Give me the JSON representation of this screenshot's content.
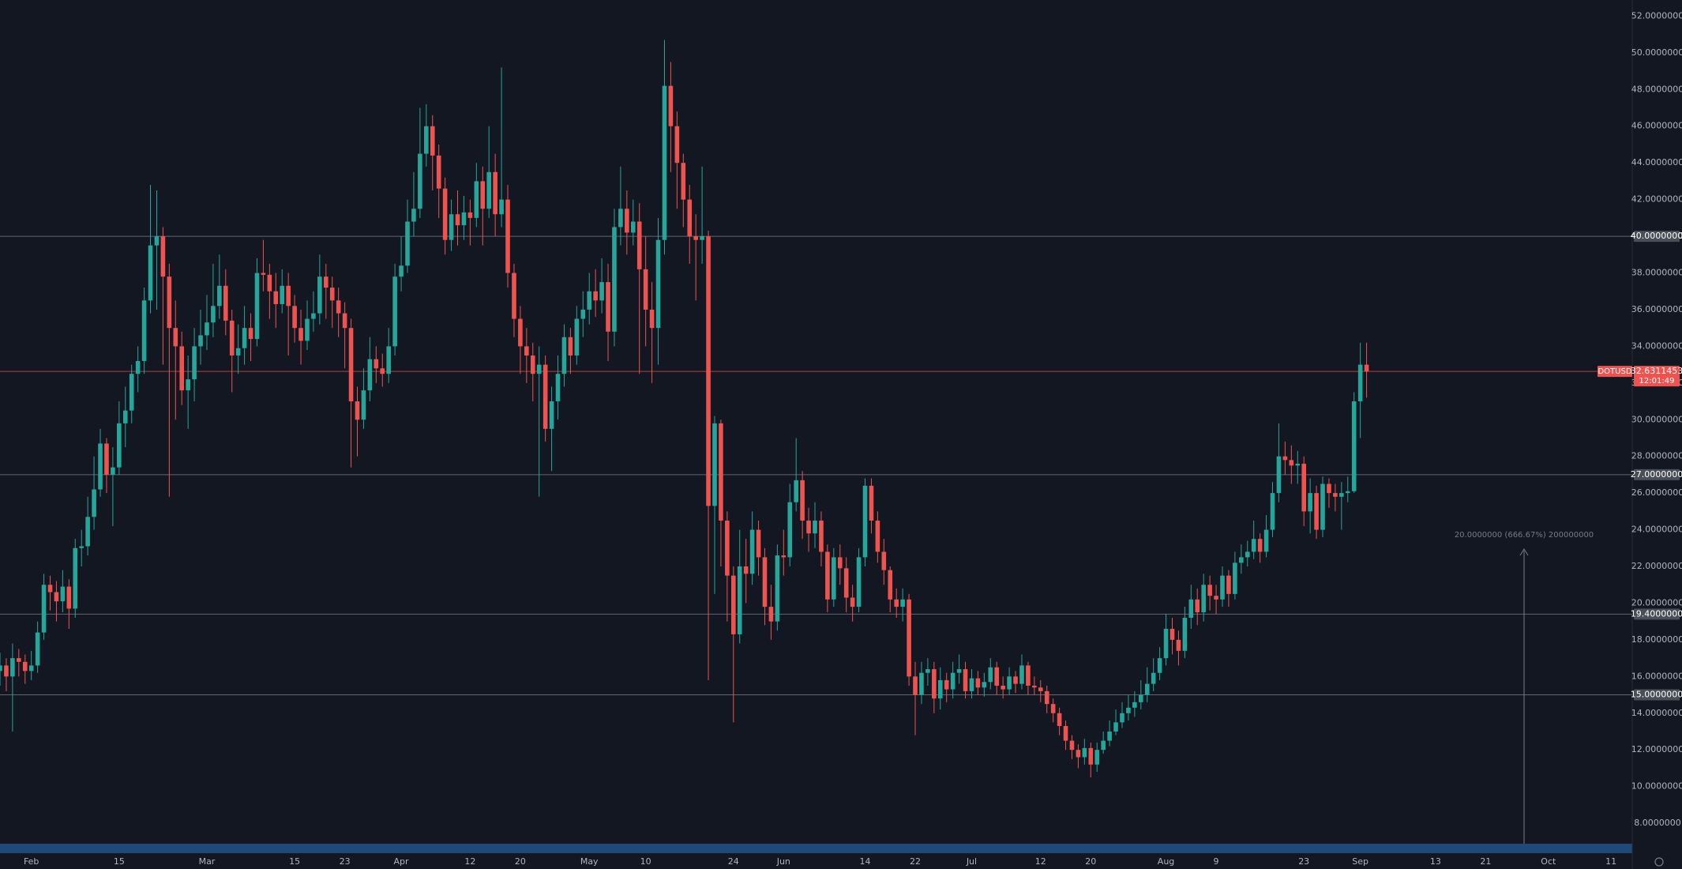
{
  "chart_data": {
    "type": "candlestick",
    "symbol": "DOTUSD",
    "x": [
      "Jan 27",
      "Jan 28",
      "Jan 29",
      "Jan 30",
      "Jan 31",
      "Feb 1",
      "Feb 2",
      "Feb 3",
      "Feb 4",
      "Feb 5",
      "Feb 6",
      "Feb 7",
      "Feb 8",
      "Feb 9",
      "Feb 10",
      "Feb 11",
      "Feb 12",
      "Feb 13",
      "Feb 14",
      "Feb 15",
      "Feb 16",
      "Feb 17",
      "Feb 18",
      "Feb 19",
      "Feb 20",
      "Feb 21",
      "Feb 22",
      "Feb 23",
      "Feb 24",
      "Feb 25",
      "Feb 26",
      "Feb 27",
      "Feb 28",
      "Mar 1",
      "Mar 2",
      "Mar 3",
      "Mar 4",
      "Mar 5",
      "Mar 6",
      "Mar 7",
      "Mar 8",
      "Mar 9",
      "Mar 10",
      "Mar 11",
      "Mar 12",
      "Mar 13",
      "Mar 14",
      "Mar 15",
      "Mar 16",
      "Mar 17",
      "Mar 18",
      "Mar 19",
      "Mar 20",
      "Mar 21",
      "Mar 22",
      "Mar 23",
      "Mar 24",
      "Mar 25",
      "Mar 26",
      "Mar 27",
      "Mar 28",
      "Mar 29",
      "Mar 30",
      "Mar 31",
      "Apr 1",
      "Apr 2",
      "Apr 3",
      "Apr 4",
      "Apr 5",
      "Apr 6",
      "Apr 7",
      "Apr 8",
      "Apr 9",
      "Apr 10",
      "Apr 11",
      "Apr 12",
      "Apr 13",
      "Apr 14",
      "Apr 15",
      "Apr 16",
      "Apr 17",
      "Apr 18",
      "Apr 19",
      "Apr 20",
      "Apr 21",
      "Apr 22",
      "Apr 23",
      "Apr 24",
      "Apr 25",
      "Apr 26",
      "Apr 27",
      "Apr 28",
      "Apr 29",
      "Apr 30",
      "May 1",
      "May 2",
      "May 3",
      "May 4",
      "May 5",
      "May 6",
      "May 7",
      "May 8",
      "May 9",
      "May 10",
      "May 11",
      "May 12",
      "May 13",
      "May 14",
      "May 15",
      "May 16",
      "May 17",
      "May 18",
      "May 19",
      "May 20",
      "May 21",
      "May 22",
      "May 23",
      "May 24",
      "May 25",
      "May 26",
      "May 27",
      "May 28",
      "May 29",
      "May 30",
      "May 31",
      "Jun 1",
      "Jun 2",
      "Jun 3",
      "Jun 4",
      "Jun 5",
      "Jun 6",
      "Jun 7",
      "Jun 8",
      "Jun 9",
      "Jun 10",
      "Jun 11",
      "Jun 12",
      "Jun 13",
      "Jun 14",
      "Jun 15",
      "Jun 16",
      "Jun 17",
      "Jun 18",
      "Jun 19",
      "Jun 20",
      "Jun 21",
      "Jun 22",
      "Jun 23",
      "Jun 24",
      "Jun 25",
      "Jun 26",
      "Jun 27",
      "Jun 28",
      "Jun 29",
      "Jun 30",
      "Jul 1",
      "Jul 2",
      "Jul 3",
      "Jul 4",
      "Jul 5",
      "Jul 6",
      "Jul 7",
      "Jul 8",
      "Jul 9",
      "Jul 10",
      "Jul 11",
      "Jul 12",
      "Jul 13",
      "Jul 14",
      "Jul 15",
      "Jul 16",
      "Jul 17",
      "Jul 18",
      "Jul 19",
      "Jul 20",
      "Jul 21",
      "Jul 22",
      "Jul 23",
      "Jul 24",
      "Jul 25",
      "Jul 26",
      "Jul 27",
      "Jul 28",
      "Jul 29",
      "Jul 30",
      "Jul 31",
      "Aug 1",
      "Aug 2",
      "Aug 3",
      "Aug 4",
      "Aug 5",
      "Aug 6",
      "Aug 7",
      "Aug 8",
      "Aug 9",
      "Aug 10",
      "Aug 11",
      "Aug 12",
      "Aug 13",
      "Aug 14",
      "Aug 15",
      "Aug 16",
      "Aug 17",
      "Aug 18",
      "Aug 19",
      "Aug 20",
      "Aug 21",
      "Aug 22",
      "Aug 23",
      "Aug 24",
      "Aug 25",
      "Aug 26",
      "Aug 27",
      "Aug 28",
      "Aug 29",
      "Aug 30",
      "Aug 31",
      "Sep 1",
      "Sep 2"
    ],
    "open": [
      16.3,
      16.6,
      16.0,
      17.0,
      16.8,
      16.3,
      16.6,
      18.4,
      21.0,
      20.6,
      20.1,
      20.9,
      19.7,
      23.0,
      23.1,
      24.7,
      26.2,
      28.7,
      27.0,
      27.4,
      29.8,
      30.5,
      32.5,
      33.2,
      36.5,
      39.5,
      40.0,
      37.8,
      35.0,
      34.0,
      31.6,
      32.2,
      34.0,
      34.6,
      35.3,
      36.2,
      37.3,
      35.4,
      33.5,
      33.9,
      35.0,
      34.4,
      38.0,
      37.9,
      37.0,
      36.3,
      37.3,
      36.2,
      35.0,
      34.3,
      35.5,
      35.8,
      37.8,
      37.2,
      36.5,
      35.8,
      35.0,
      31.0,
      30.0,
      31.6,
      33.3,
      32.8,
      32.5,
      34.0,
      37.8,
      38.4,
      40.8,
      41.5,
      44.5,
      46.0,
      44.4,
      42.6,
      39.8,
      41.2,
      40.6,
      41.3,
      41.0,
      43.0,
      41.5,
      43.5,
      41.2,
      42.0,
      38.0,
      35.5,
      34.0,
      33.5,
      32.5,
      33.0,
      29.5,
      31.0,
      32.5,
      34.5,
      33.5,
      35.5,
      36.0,
      37.0,
      36.5,
      37.5,
      34.8,
      40.5,
      41.5,
      40.2,
      40.8,
      38.2,
      36.0,
      35.0,
      39.8,
      48.2,
      46.0,
      44.0,
      42.0,
      40.0,
      39.8,
      40.0,
      25.3,
      29.8,
      24.5,
      21.5,
      18.3,
      22.0,
      21.6,
      24.0,
      22.5,
      19.8,
      19.0,
      22.6,
      22.5,
      25.5,
      26.7,
      24.5,
      23.8,
      24.5,
      22.8,
      20.2,
      22.5,
      21.9,
      20.3,
      19.8,
      22.5,
      26.4,
      24.5,
      22.8,
      21.8,
      20.2,
      19.8,
      20.2,
      16.0,
      15.0,
      16.2,
      16.4,
      14.8,
      15.8,
      15.3,
      16.2,
      16.4,
      15.2,
      15.9,
      15.4,
      15.7,
      16.5,
      15.5,
      15.3,
      16.0,
      15.6,
      16.6,
      15.5,
      15.4,
      15.2,
      14.5,
      14.0,
      13.3,
      12.5,
      12.0,
      11.6,
      12.1,
      11.2,
      12.0,
      12.5,
      13.0,
      13.5,
      14.0,
      14.3,
      14.6,
      15.0,
      15.6,
      16.2,
      17.0,
      18.6,
      18.0,
      17.4,
      19.2,
      20.2,
      19.5,
      21.0,
      20.4,
      20.2,
      21.5,
      20.5,
      22.2,
      22.5,
      22.8,
      23.5,
      22.8,
      24.0,
      26.0,
      28.0,
      27.8,
      27.5,
      27.6,
      25.0,
      26.0,
      24.0,
      26.5,
      26.0,
      25.8,
      26.0,
      26.1,
      31.0,
      33.0
    ],
    "high": [
      17.3,
      17.0,
      17.8,
      17.5,
      17.2,
      17.4,
      19.0,
      21.6,
      21.5,
      21.2,
      21.8,
      21.3,
      23.5,
      24.0,
      25.8,
      28.0,
      29.5,
      29.0,
      28.5,
      31.0,
      31.8,
      33.0,
      34.0,
      37.2,
      42.8,
      42.5,
      40.5,
      38.5,
      36.5,
      34.8,
      33.5,
      35.0,
      36.0,
      36.8,
      38.5,
      39.0,
      38.2,
      36.0,
      35.2,
      36.2,
      35.8,
      38.8,
      39.8,
      38.5,
      38.0,
      38.2,
      38.0,
      36.8,
      36.0,
      36.5,
      37.0,
      39.0,
      38.5,
      37.8,
      37.2,
      36.4,
      35.5,
      31.8,
      32.8,
      34.5,
      34.0,
      33.6,
      35.0,
      38.5,
      40.0,
      42.0,
      43.5,
      47.0,
      47.2,
      46.6,
      45.0,
      43.2,
      42.0,
      42.5,
      42.2,
      42.0,
      44.0,
      43.8,
      46.0,
      44.5,
      49.2,
      42.8,
      38.5,
      36.2,
      35.0,
      34.2,
      34.0,
      33.5,
      31.8,
      33.5,
      35.2,
      35.0,
      36.2,
      37.0,
      38.0,
      38.2,
      38.8,
      38.5,
      41.5,
      43.8,
      42.5,
      42.0,
      41.8,
      40.0,
      37.5,
      41.0,
      50.7,
      49.5,
      46.8,
      44.5,
      42.8,
      41.2,
      43.8,
      40.3,
      30.2,
      30.0,
      25.0,
      22.0,
      24.0,
      23.5,
      25.0,
      24.5,
      23.0,
      21.0,
      23.2,
      24.0,
      26.5,
      29.0,
      27.2,
      25.2,
      25.5,
      25.0,
      23.2,
      23.0,
      23.2,
      22.5,
      21.0,
      23.0,
      26.8,
      26.8,
      25.0,
      23.5,
      22.0,
      20.8,
      20.8,
      20.5,
      16.8,
      16.8,
      17.0,
      16.8,
      16.5,
      16.2,
      16.8,
      17.2,
      16.8,
      16.4,
      16.3,
      16.2,
      17.0,
      16.8,
      16.0,
      16.5,
      16.3,
      17.2,
      16.8,
      16.0,
      15.8,
      15.5,
      14.8,
      14.3,
      13.6,
      12.8,
      12.3,
      12.6,
      12.4,
      12.4,
      13.0,
      13.6,
      14.2,
      14.6,
      15.0,
      15.2,
      15.8,
      16.5,
      17.0,
      17.6,
      19.4,
      19.2,
      18.5,
      19.8,
      21.0,
      20.8,
      21.6,
      21.5,
      21.0,
      22.0,
      21.8,
      22.8,
      23.2,
      23.4,
      24.5,
      23.8,
      24.8,
      26.6,
      29.8,
      28.8,
      28.6,
      28.3,
      28.0,
      26.8,
      26.4,
      26.9,
      26.8,
      26.5,
      26.6,
      26.9,
      31.5,
      34.2,
      34.2
    ],
    "low": [
      15.5,
      15.2,
      13.0,
      16.0,
      15.6,
      15.8,
      16.2,
      18.0,
      19.6,
      19.0,
      19.5,
      18.6,
      19.2,
      22.0,
      22.6,
      24.0,
      25.8,
      26.0,
      24.2,
      27.0,
      28.5,
      29.8,
      31.5,
      32.5,
      35.8,
      36.0,
      33.0,
      25.8,
      30.0,
      30.8,
      29.5,
      31.0,
      33.0,
      33.8,
      34.5,
      35.5,
      34.6,
      31.5,
      32.5,
      33.0,
      33.2,
      34.0,
      37.0,
      35.5,
      35.0,
      35.8,
      33.5,
      34.2,
      33.0,
      33.8,
      34.8,
      35.2,
      35.5,
      35.0,
      34.5,
      32.8,
      27.4,
      28.0,
      29.5,
      31.0,
      32.0,
      31.8,
      32.0,
      33.5,
      37.0,
      38.0,
      40.0,
      41.0,
      43.8,
      42.5,
      41.0,
      39.0,
      39.2,
      39.5,
      39.8,
      39.5,
      40.5,
      39.5,
      41.0,
      40.0,
      40.5,
      37.2,
      34.5,
      32.5,
      32.0,
      31.0,
      25.8,
      28.8,
      27.2,
      30.0,
      31.8,
      32.5,
      33.0,
      34.5,
      35.2,
      35.6,
      35.8,
      33.2,
      34.0,
      39.5,
      39.0,
      39.5,
      32.5,
      34.0,
      32.0,
      33.0,
      39.0,
      43.5,
      41.5,
      40.5,
      38.5,
      36.5,
      38.5,
      15.8,
      20.5,
      22.0,
      19.0,
      13.5,
      17.8,
      20.0,
      21.0,
      21.5,
      18.8,
      18.0,
      18.5,
      21.5,
      22.0,
      25.0,
      23.5,
      22.8,
      23.0,
      22.0,
      19.5,
      19.8,
      21.0,
      19.5,
      19.0,
      19.5,
      22.0,
      23.8,
      22.2,
      21.0,
      19.5,
      19.2,
      19.0,
      15.5,
      12.8,
      14.5,
      15.5,
      14.0,
      14.2,
      14.6,
      14.8,
      15.6,
      14.8,
      14.8,
      15.0,
      14.9,
      15.3,
      15.0,
      14.8,
      15.0,
      15.1,
      15.3,
      15.0,
      15.0,
      14.6,
      14.0,
      13.5,
      12.8,
      12.0,
      11.5,
      11.0,
      11.2,
      10.5,
      10.8,
      11.8,
      12.2,
      12.8,
      13.2,
      13.6,
      13.8,
      14.2,
      14.6,
      15.2,
      15.8,
      16.6,
      17.2,
      16.6,
      17.0,
      18.6,
      18.8,
      19.0,
      19.6,
      19.4,
      19.8,
      19.8,
      20.2,
      21.6,
      22.0,
      22.4,
      22.2,
      22.5,
      23.6,
      25.5,
      27.0,
      26.5,
      26.5,
      24.2,
      23.8,
      23.5,
      23.6,
      25.2,
      25.0,
      24.0,
      25.5,
      26.0,
      29.0,
      31.2
    ],
    "close": [
      16.6,
      16.0,
      17.0,
      16.8,
      16.3,
      16.6,
      18.4,
      21.0,
      20.6,
      20.1,
      20.9,
      19.7,
      23.0,
      23.1,
      24.7,
      26.2,
      28.7,
      27.0,
      27.4,
      29.8,
      30.5,
      32.5,
      33.2,
      36.5,
      39.5,
      40.0,
      37.8,
      35.0,
      34.0,
      31.6,
      32.2,
      34.0,
      34.6,
      35.3,
      36.2,
      37.3,
      35.4,
      33.5,
      33.9,
      35.0,
      34.4,
      38.0,
      37.9,
      37.0,
      36.3,
      37.3,
      36.2,
      35.0,
      34.3,
      35.5,
      35.8,
      37.8,
      37.2,
      36.5,
      35.8,
      35.0,
      31.0,
      30.0,
      31.6,
      33.3,
      32.8,
      32.5,
      34.0,
      37.8,
      38.4,
      40.8,
      41.5,
      44.5,
      46.0,
      44.4,
      42.6,
      39.8,
      41.2,
      40.6,
      41.3,
      41.0,
      43.0,
      41.5,
      43.5,
      41.2,
      42.0,
      38.0,
      35.5,
      34.0,
      33.5,
      32.5,
      33.0,
      29.5,
      31.0,
      32.5,
      34.5,
      33.5,
      35.5,
      36.0,
      37.0,
      36.5,
      37.5,
      34.8,
      40.5,
      41.5,
      40.2,
      40.8,
      38.2,
      36.0,
      35.0,
      39.8,
      48.2,
      46.0,
      44.0,
      42.0,
      40.0,
      39.8,
      40.0,
      25.3,
      29.8,
      24.5,
      21.5,
      18.3,
      22.0,
      21.6,
      24.0,
      22.5,
      19.8,
      19.0,
      22.6,
      22.5,
      25.5,
      26.7,
      24.5,
      23.8,
      24.5,
      22.8,
      20.2,
      22.5,
      21.9,
      20.3,
      19.8,
      22.5,
      26.4,
      24.5,
      22.8,
      21.8,
      20.2,
      19.8,
      20.2,
      16.0,
      15.0,
      16.2,
      16.4,
      14.8,
      15.8,
      15.3,
      16.2,
      16.4,
      15.2,
      15.9,
      15.4,
      15.7,
      16.5,
      15.5,
      15.3,
      16.0,
      15.6,
      16.6,
      15.5,
      15.4,
      15.2,
      14.5,
      14.0,
      13.3,
      12.5,
      12.0,
      11.6,
      12.1,
      11.2,
      12.0,
      12.5,
      13.0,
      13.5,
      14.0,
      14.3,
      14.6,
      15.0,
      15.6,
      16.2,
      17.0,
      18.6,
      18.0,
      17.4,
      19.2,
      20.2,
      19.5,
      21.0,
      20.4,
      20.2,
      21.5,
      20.5,
      22.2,
      22.5,
      22.8,
      23.5,
      22.8,
      24.0,
      26.0,
      28.0,
      27.8,
      27.5,
      27.6,
      25.0,
      26.0,
      24.0,
      26.5,
      26.0,
      25.8,
      26.0,
      26.1,
      31.0,
      33.0,
      32.6311453
    ],
    "up_color": "#26a69a",
    "down_color": "#ef5350",
    "xlim": [
      "Jan 27",
      "Oct 14"
    ],
    "xticks": [
      {
        "value": "Feb 1",
        "label": "Feb"
      },
      {
        "value": "Feb 15",
        "label": "15"
      },
      {
        "value": "Mar 1",
        "label": "Mar"
      },
      {
        "value": "Mar 15",
        "label": "15"
      },
      {
        "value": "Mar 23",
        "label": "23"
      },
      {
        "value": "Apr 1",
        "label": "Apr"
      },
      {
        "value": "Apr 12",
        "label": "12"
      },
      {
        "value": "Apr 20",
        "label": "20"
      },
      {
        "value": "May 1",
        "label": "May"
      },
      {
        "value": "May 10",
        "label": "10"
      },
      {
        "value": "May 24",
        "label": "24"
      },
      {
        "value": "Jun 1",
        "label": "Jun"
      },
      {
        "value": "Jun 14",
        "label": "14"
      },
      {
        "value": "Jun 22",
        "label": "22"
      },
      {
        "value": "Jul 1",
        "label": "Jul"
      },
      {
        "value": "Jul 12",
        "label": "12"
      },
      {
        "value": "Jul 20",
        "label": "20"
      },
      {
        "value": "Aug 1",
        "label": "Aug"
      },
      {
        "value": "Aug 9",
        "label": "9"
      },
      {
        "value": "Aug 23",
        "label": "23"
      },
      {
        "value": "Sep 1",
        "label": "Sep"
      },
      {
        "value": "Sep 13",
        "label": "13"
      },
      {
        "value": "Sep 21",
        "label": "21"
      },
      {
        "value": "Oct 1",
        "label": "Oct"
      },
      {
        "value": "Oct 11",
        "label": "11"
      }
    ],
    "ylim": [
      6.97,
      52.88
    ],
    "yticks": [
      {
        "value": 52,
        "label": "52.0000000"
      },
      {
        "value": 50,
        "label": "50.0000000"
      },
      {
        "value": 48,
        "label": "48.0000000"
      },
      {
        "value": 46,
        "label": "46.0000000"
      },
      {
        "value": 44,
        "label": "44.0000000"
      },
      {
        "value": 42,
        "label": "42.0000000"
      },
      {
        "value": 40,
        "label": "40.0000000"
      },
      {
        "value": 38,
        "label": "38.0000000"
      },
      {
        "value": 36,
        "label": "36.0000000"
      },
      {
        "value": 34,
        "label": "34.0000000"
      },
      {
        "value": 32,
        "label": "32.0000000"
      },
      {
        "value": 30,
        "label": "30.0000000"
      },
      {
        "value": 28,
        "label": "28.0000000"
      },
      {
        "value": 26,
        "label": "26.0000000"
      },
      {
        "value": 24,
        "label": "24.0000000"
      },
      {
        "value": 22,
        "label": "22.0000000"
      },
      {
        "value": 20,
        "label": "20.0000000"
      },
      {
        "value": 18,
        "label": "18.0000000"
      },
      {
        "value": 16,
        "label": "16.0000000"
      },
      {
        "value": 14,
        "label": "14.0000000"
      },
      {
        "value": 12,
        "label": "12.0000000"
      },
      {
        "value": 10,
        "label": "10.0000000"
      },
      {
        "value": 8,
        "label": "8.0000000"
      }
    ],
    "levels": [
      {
        "value": 40,
        "label": "40.0000000"
      },
      {
        "value": 27,
        "label": "27.0000000"
      },
      {
        "value": 19.4,
        "label": "19.4000000"
      },
      {
        "value": 15,
        "label": "15.0000000"
      }
    ],
    "level_color": "#787b86",
    "last_label": "32.6311453",
    "countdown": "12:01:49",
    "annotation": "20.0000000 (666.67%) 200000000"
  }
}
